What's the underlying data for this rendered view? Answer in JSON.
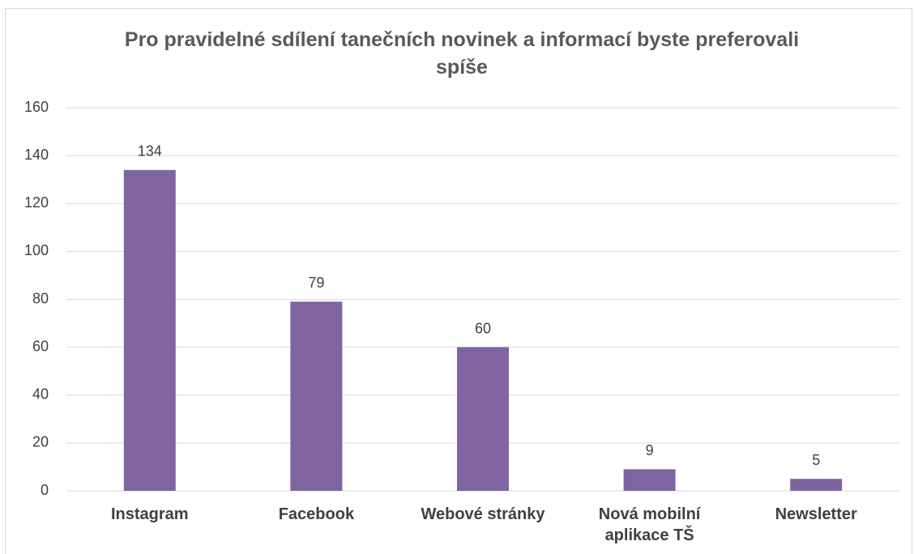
{
  "chart_data": {
    "type": "bar",
    "title": "Pro pravidelné sdílení tanečních novinek a informací byste preferovali spíše",
    "categories": [
      "Instagram",
      "Facebook",
      "Webové stránky",
      "Nová mobilní aplikace TŠ",
      "Newsletter"
    ],
    "values": [
      134,
      79,
      60,
      9,
      5
    ],
    "color": "#8064a2",
    "ylim": [
      0,
      160
    ],
    "yticks": [
      0,
      20,
      40,
      60,
      80,
      100,
      120,
      140,
      160
    ],
    "grid": true
  }
}
